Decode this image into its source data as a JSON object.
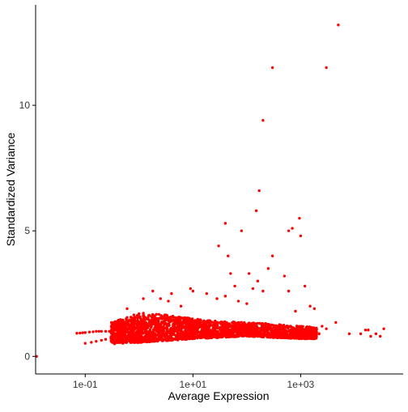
{
  "chart_data": {
    "type": "scatter",
    "title": "",
    "xlabel": "Average Expression",
    "ylabel": "Standardized Variance",
    "x_scale": "log10",
    "xlim": [
      0.012,
      80000
    ],
    "ylim": [
      -0.7,
      14
    ],
    "grid": false,
    "legend": "none",
    "point_color": "#ff0000",
    "x_ticks": [
      {
        "value": 0.1,
        "label": "1e-01"
      },
      {
        "value": 10,
        "label": "1e+01"
      },
      {
        "value": 1000,
        "label": "1e+03"
      }
    ],
    "y_ticks": [
      {
        "value": 0,
        "label": "0"
      },
      {
        "value": 5,
        "label": "5"
      },
      {
        "value": 10,
        "label": "10"
      }
    ],
    "series": [
      {
        "points": [
          [
            0.0125,
            0.0
          ],
          [
            0.07,
            0.92
          ],
          [
            0.08,
            0.93
          ],
          [
            0.09,
            0.94
          ],
          [
            0.1,
            0.95
          ],
          [
            0.12,
            0.97
          ],
          [
            0.14,
            0.98
          ],
          [
            0.16,
            1.0
          ],
          [
            0.18,
            1.0
          ],
          [
            0.2,
            1.0
          ],
          [
            0.24,
            1.0
          ],
          [
            0.28,
            1.0
          ],
          [
            0.33,
            1.0
          ],
          [
            0.1,
            0.52
          ],
          [
            0.13,
            0.56
          ],
          [
            0.16,
            0.6
          ],
          [
            0.2,
            0.64
          ],
          [
            0.24,
            0.68
          ],
          [
            0.3,
            0.74
          ],
          [
            0.35,
            0.5
          ],
          [
            0.5,
            0.52
          ],
          [
            0.7,
            0.55
          ],
          [
            1.0,
            0.58
          ],
          [
            1.5,
            0.6
          ],
          [
            2.0,
            0.62
          ],
          [
            0.4,
            1.25
          ],
          [
            0.5,
            1.45
          ],
          [
            0.6,
            1.55
          ],
          [
            0.8,
            1.65
          ],
          [
            1.0,
            1.7
          ],
          [
            1.2,
            1.72
          ],
          [
            0.6,
            1.9
          ],
          [
            1.2,
            2.3
          ],
          [
            1.8,
            2.6
          ],
          [
            2.5,
            2.3
          ],
          [
            3.5,
            2.2
          ],
          [
            4.0,
            2.5
          ],
          [
            6.0,
            2.0
          ],
          [
            9.0,
            2.7
          ],
          [
            10.0,
            2.6
          ],
          [
            18.0,
            2.5
          ],
          [
            28.0,
            2.3
          ],
          [
            40.0,
            2.4
          ],
          [
            50.0,
            3.3
          ],
          [
            60.0,
            2.8
          ],
          [
            70.0,
            2.2
          ],
          [
            100.0,
            2.1
          ],
          [
            110.0,
            3.3
          ],
          [
            130.0,
            2.7
          ],
          [
            160.0,
            3.0
          ],
          [
            200.0,
            2.6
          ],
          [
            250.0,
            3.5
          ],
          [
            300.0,
            4.0
          ],
          [
            500.0,
            3.2
          ],
          [
            600.0,
            2.6
          ],
          [
            800.0,
            1.8
          ],
          [
            1200.0,
            2.8
          ],
          [
            30.0,
            4.4
          ],
          [
            40.0,
            5.3
          ],
          [
            45.0,
            4.0
          ],
          [
            80.0,
            5.0
          ],
          [
            150.0,
            5.8
          ],
          [
            170.0,
            6.6
          ],
          [
            200.0,
            9.4
          ],
          [
            300.0,
            11.5
          ],
          [
            3000.0,
            11.5
          ],
          [
            5000.0,
            13.2
          ],
          [
            600.0,
            5.0
          ],
          [
            700.0,
            5.1
          ],
          [
            950.0,
            5.5
          ],
          [
            1000.0,
            4.8
          ],
          [
            1500.0,
            2.0
          ],
          [
            1800.0,
            1.9
          ],
          [
            2200.0,
            0.9
          ],
          [
            2500.0,
            1.2
          ],
          [
            3000.0,
            1.1
          ],
          [
            4500.0,
            1.35
          ],
          [
            8000.0,
            0.9
          ],
          [
            13000.0,
            0.9
          ],
          [
            16000.0,
            1.05
          ],
          [
            18000.0,
            1.05
          ],
          [
            20000.0,
            0.8
          ],
          [
            25000.0,
            0.9
          ],
          [
            30000.0,
            0.8
          ],
          [
            35000.0,
            1.1
          ]
        ],
        "dense_band": [
          {
            "x": 0.3,
            "y_low": 0.55,
            "y_high": 1.35
          },
          {
            "x": 0.5,
            "y_low": 0.55,
            "y_high": 1.5
          },
          {
            "x": 1.0,
            "y_low": 0.55,
            "y_high": 1.65
          },
          {
            "x": 2.0,
            "y_low": 0.6,
            "y_high": 1.7
          },
          {
            "x": 5.0,
            "y_low": 0.65,
            "y_high": 1.6
          },
          {
            "x": 10.0,
            "y_low": 0.7,
            "y_high": 1.5
          },
          {
            "x": 30.0,
            "y_low": 0.75,
            "y_high": 1.4
          },
          {
            "x": 100.0,
            "y_low": 0.8,
            "y_high": 1.35
          },
          {
            "x": 300.0,
            "y_low": 0.75,
            "y_high": 1.3
          },
          {
            "x": 1000.0,
            "y_low": 0.7,
            "y_high": 1.2
          },
          {
            "x": 2000.0,
            "y_low": 0.7,
            "y_high": 1.15
          }
        ]
      }
    ]
  }
}
